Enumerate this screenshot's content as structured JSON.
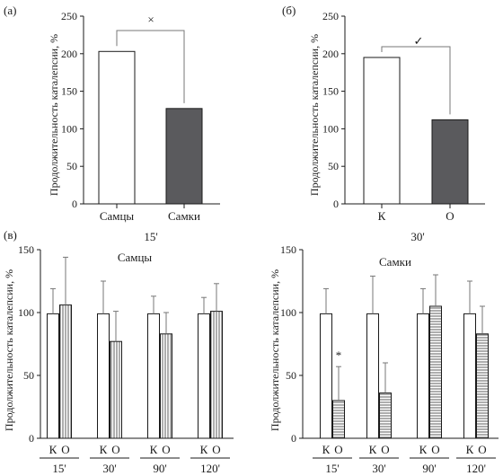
{
  "colors": {
    "dark_bar": "#5a5a5d",
    "axis": "#1a1a1a",
    "error": "#777777"
  },
  "chart_data": [
    {
      "id": "a",
      "type": "bar",
      "panel_label": "(а)",
      "ylabel": "Продолжительность каталепсии, %",
      "ylim": [
        0,
        250
      ],
      "yticks": [
        0,
        50,
        100,
        150,
        200,
        250
      ],
      "categories": [
        "Самцы",
        "Самки"
      ],
      "values": [
        203,
        127
      ],
      "xlabel": "15'",
      "significance": "×"
    },
    {
      "id": "b",
      "type": "bar",
      "panel_label": "(б)",
      "ylabel": "Продолжительность каталепсии, %",
      "ylim": [
        0,
        250
      ],
      "yticks": [
        0,
        50,
        100,
        150,
        200,
        250
      ],
      "categories": [
        "К",
        "О"
      ],
      "values": [
        195,
        112
      ],
      "xlabel": "30'",
      "significance": "✓"
    },
    {
      "id": "c",
      "type": "bar",
      "panel_label": "(в)",
      "title": "Самцы",
      "ylabel": "Продолжительность каталепсии, %",
      "ylim": [
        0,
        150
      ],
      "yticks": [
        0,
        50,
        100,
        150
      ],
      "groups": [
        "15'",
        "30'",
        "90'",
        "120'"
      ],
      "bar_labels": [
        "К",
        "О"
      ],
      "series": [
        {
          "name": "К",
          "values": [
            99,
            99,
            99,
            99
          ],
          "errors": [
            20,
            26,
            14,
            13
          ]
        },
        {
          "name": "О",
          "values": [
            106,
            77,
            83,
            101
          ],
          "errors": [
            38,
            24,
            17,
            22
          ]
        }
      ]
    },
    {
      "id": "d",
      "type": "bar",
      "title": "Самки",
      "ylabel": "Продолжительность каталепсии, %",
      "ylim": [
        0,
        150
      ],
      "yticks": [
        0,
        50,
        100,
        150
      ],
      "groups": [
        "15'",
        "30'",
        "90'",
        "120'"
      ],
      "bar_labels": [
        "К",
        "О"
      ],
      "series": [
        {
          "name": "К",
          "values": [
            99,
            99,
            99,
            99
          ],
          "errors": [
            20,
            30,
            20,
            26
          ]
        },
        {
          "name": "О",
          "values": [
            30,
            36,
            105,
            83
          ],
          "errors": [
            27,
            24,
            25,
            22
          ]
        }
      ],
      "annotations": [
        {
          "group": "15'",
          "bar": "О",
          "text": "*"
        }
      ]
    }
  ]
}
